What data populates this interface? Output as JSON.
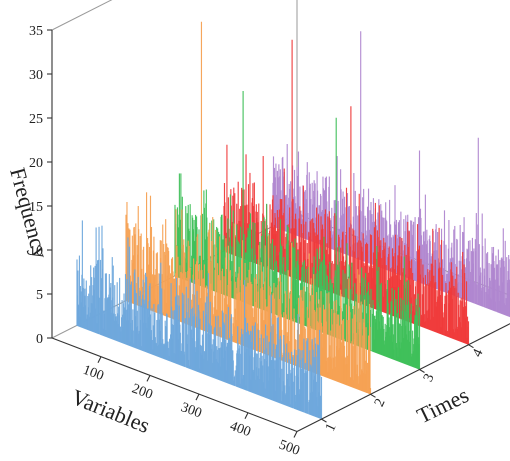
{
  "chart_data": {
    "type": "3d-bar",
    "title": "",
    "zlabel": "Frequency",
    "xlabel": "Variables",
    "ylabel": "Times",
    "z_ticks": [
      0,
      5,
      10,
      15,
      20,
      25,
      30,
      35
    ],
    "x_ticks": [
      100,
      200,
      300,
      400,
      500
    ],
    "y_ticks": [
      1,
      2,
      3,
      4,
      5
    ],
    "z_tick_labels": [
      "0",
      "5",
      "10",
      "15",
      "20",
      "25",
      "30",
      "35"
    ],
    "x_tick_labels": [
      "100",
      "200",
      "300",
      "400",
      "500"
    ],
    "y_tick_labels": [
      "1",
      "2",
      "3",
      "4",
      "5"
    ],
    "zlim": [
      0,
      35
    ],
    "xlim": [
      0,
      500
    ],
    "grid": false,
    "series": [
      {
        "time": 1,
        "color": "#6fa8dc",
        "peaks": [
          [
            40,
            12
          ],
          [
            110,
            7
          ],
          [
            150,
            8
          ],
          [
            200,
            6
          ],
          [
            270,
            6
          ],
          [
            330,
            5
          ],
          [
            400,
            5
          ]
        ],
        "baseline_mean": 4.5,
        "baseline_max": 9
      },
      {
        "time": 2,
        "color": "#f6a153",
        "peaks": [
          [
            30,
            8
          ],
          [
            130,
            9
          ],
          [
            155,
            35
          ],
          [
            185,
            10
          ],
          [
            230,
            8
          ],
          [
            300,
            7
          ],
          [
            400,
            6
          ]
        ],
        "baseline_mean": 5,
        "baseline_max": 10
      },
      {
        "time": 3,
        "color": "#3fc05a",
        "peaks": [
          [
            60,
            11
          ],
          [
            120,
            10
          ],
          [
            140,
            24
          ],
          [
            180,
            10
          ],
          [
            240,
            9
          ],
          [
            300,
            8
          ],
          [
            330,
            25
          ]
        ],
        "baseline_mean": 4.5,
        "baseline_max": 9
      },
      {
        "time": 4,
        "color": "#ef3b3b",
        "peaks": [
          [
            60,
            9
          ],
          [
            100,
            8
          ],
          [
            140,
            27
          ],
          [
            190,
            9
          ],
          [
            260,
            22
          ],
          [
            330,
            8
          ],
          [
            440,
            12
          ]
        ],
        "baseline_mean": 4.5,
        "baseline_max": 9
      },
      {
        "time": 5,
        "color": "#b087d0",
        "peaks": [
          [
            30,
            10
          ],
          [
            110,
            8
          ],
          [
            180,
            26
          ],
          [
            250,
            10
          ],
          [
            300,
            15
          ],
          [
            420,
            19
          ]
        ],
        "baseline_mean": 4,
        "baseline_max": 8
      }
    ]
  }
}
